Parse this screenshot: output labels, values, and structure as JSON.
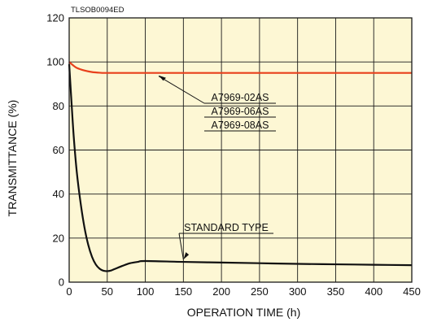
{
  "chart_data": {
    "type": "line",
    "code_label": "TLSOB0094ED",
    "xlabel": "OPERATION TIME (h)",
    "ylabel": "TRANSMITTANCE (%)",
    "xlim": [
      0,
      450
    ],
    "ylim": [
      0,
      120
    ],
    "x_ticks": [
      "0",
      "50",
      "100",
      "150",
      "200",
      "250",
      "300",
      "350",
      "400",
      "450"
    ],
    "y_ticks": [
      "0",
      "20",
      "40",
      "60",
      "80",
      "100",
      "120"
    ],
    "grid": true,
    "colors": {
      "plot_bg": "#fdf7d4",
      "grid": "#1a1a1a",
      "frame": "#1a1a1a"
    },
    "series": [
      {
        "name": "A7969-02AS, A7969-06AS, A7969-08AS",
        "color": "#e8401c",
        "x": [
          0,
          5,
          10,
          20,
          30,
          40,
          50,
          100,
          200,
          300,
          400,
          450
        ],
        "y": [
          100,
          98.5,
          97.3,
          96.1,
          95.4,
          95.1,
          95,
          95,
          95,
          95,
          95,
          95
        ]
      },
      {
        "name": "STANDARD TYPE",
        "color": "#111111",
        "x": [
          0,
          3,
          6,
          10,
          15,
          20,
          25,
          30,
          35,
          40,
          45,
          50,
          55,
          60,
          70,
          80,
          90,
          100,
          150,
          200,
          250,
          300,
          350,
          400,
          450
        ],
        "y": [
          99,
          82,
          66,
          50,
          36,
          25,
          17,
          11.5,
          8,
          6.1,
          5.2,
          5,
          5.3,
          6,
          7.4,
          8.6,
          9.2,
          9.6,
          9.2,
          8.9,
          8.6,
          8.3,
          8.1,
          7.9,
          7.7
        ]
      }
    ],
    "annotations": {
      "series_a_labels": [
        "A7969-02AS",
        "A7969-06AS",
        "A7969-08AS"
      ],
      "series_b_label": "STANDARD TYPE"
    }
  }
}
